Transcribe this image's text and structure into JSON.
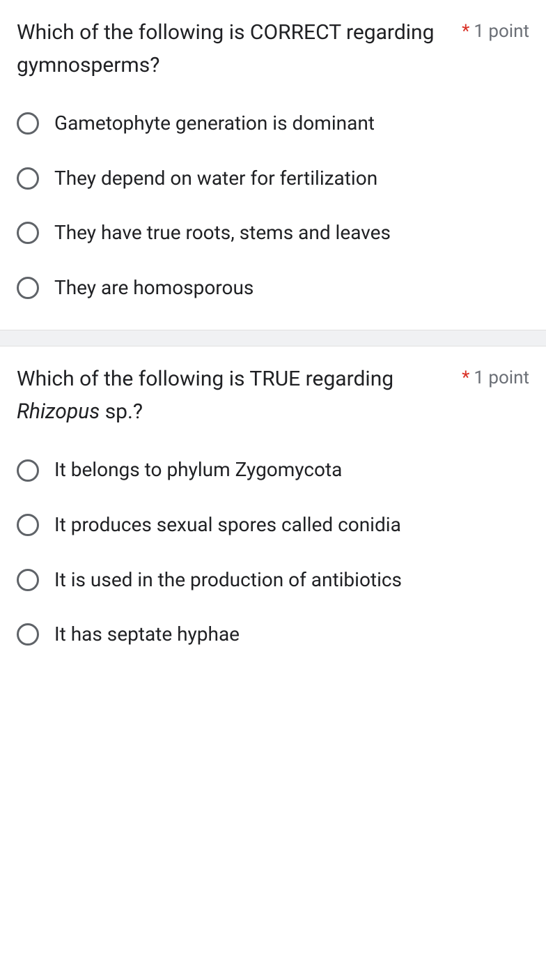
{
  "colors": {
    "text": "#202124",
    "required": "#d93025",
    "muted": "#6b6f76",
    "radio_border": "#5f6368",
    "spacer_bg": "#f0f1f3",
    "spacer_border": "#e0e0e0",
    "card_bg": "#ffffff"
  },
  "typography": {
    "title_fontsize": 30,
    "option_fontsize": 28,
    "points_fontsize": 26
  },
  "questions": [
    {
      "title_html": "Which of the following is CORRECT regarding gymnosperms?",
      "required_marker": "*",
      "points_label": "1 point",
      "options": [
        "Gametophyte generation is dominant",
        "They depend on water for fertilization",
        "They have true roots, stems and leaves",
        "They are homosporous"
      ]
    },
    {
      "title_html": "Which of the following is TRUE regarding <em>Rhizopus</em> sp.?",
      "required_marker": "*",
      "points_label": "1 point",
      "options": [
        "It belongs to phylum Zygomycota",
        "It produces sexual spores called conidia",
        "It is used in the production of antibiotics",
        "It has septate hyphae"
      ]
    }
  ]
}
